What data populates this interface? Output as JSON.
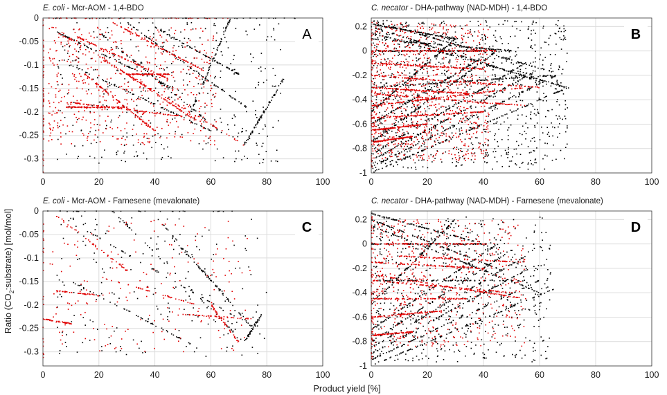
{
  "figure": {
    "xlabel": "Product yield [%]",
    "ylabel": {
      "prefix": "Ratio (CO",
      "sub": "2",
      "suffix": ":substrate) [mol/mol]"
    }
  },
  "colors": {
    "series_a": "#000000",
    "series_b": "#e00000",
    "grid": "#dcdcdc",
    "axis": "#333333"
  },
  "chart_data": [
    {
      "type": "scatter",
      "letter": "A",
      "title": {
        "italic": "E. coli",
        "rest": " - Mcr-AOM - 1,4-BDO"
      },
      "xlim": [
        0,
        100
      ],
      "ylim": [
        -0.33,
        0
      ],
      "xticks": [
        0,
        20,
        40,
        60,
        80,
        100
      ],
      "yticks": [
        0,
        -0.05,
        -0.1,
        -0.15,
        -0.2,
        -0.25,
        -0.3
      ],
      "ytick_labels": [
        "0",
        "-0.05",
        "-0.1",
        "-0.15",
        "-0.2",
        "-0.25",
        "-0.3"
      ],
      "series": [
        {
          "name": "black",
          "color": "#000000",
          "seed": 11,
          "count": 950,
          "lines": [
            [
              [
                0,
                0
              ],
              [
                90,
                0
              ]
            ],
            [
              [
                67,
                0
              ],
              [
                53,
                -0.2
              ]
            ],
            [
              [
                72,
                -0.27
              ],
              [
                86,
                -0.13
              ]
            ],
            [
              [
                5,
                -0.03
              ],
              [
                50,
                -0.16
              ]
            ],
            [
              [
                20,
                -0.03
              ],
              [
                65,
                -0.25
              ]
            ],
            [
              [
                30,
                -0.01
              ],
              [
                75,
                -0.2
              ]
            ],
            [
              [
                10,
                -0.1
              ],
              [
                60,
                -0.24
              ]
            ],
            [
              [
                40,
                -0.02
              ],
              [
                70,
                -0.12
              ]
            ]
          ],
          "cloud": [
            [
              5,
              85
            ],
            [
              -0.31,
              -0.01
            ]
          ]
        },
        {
          "name": "red",
          "color": "#e00000",
          "seed": 23,
          "count": 1400,
          "lines": [
            [
              [
                0,
                0
              ],
              [
                0,
                -0.33
              ]
            ],
            [
              [
                0,
                0
              ],
              [
                67,
                0
              ]
            ],
            [
              [
                5,
                -0.03
              ],
              [
                72,
                -0.27
              ]
            ],
            [
              [
                12,
                -0.04
              ],
              [
                45,
                -0.13
              ]
            ],
            [
              [
                20,
                -0.08
              ],
              [
                55,
                -0.22
              ]
            ],
            [
              [
                10,
                -0.18
              ],
              [
                50,
                -0.21
              ]
            ],
            [
              [
                25,
                -0.01
              ],
              [
                60,
                -0.12
              ]
            ],
            [
              [
                15,
                -0.12
              ],
              [
                40,
                -0.24
              ]
            ],
            [
              [
                30,
                -0.12
              ],
              [
                45,
                -0.12
              ]
            ],
            [
              [
                8,
                -0.19
              ],
              [
                30,
                -0.19
              ]
            ]
          ],
          "cloud": [
            [
              2,
              62
            ],
            [
              -0.27,
              -0.02
            ]
          ]
        }
      ]
    },
    {
      "type": "scatter",
      "letter": "B",
      "title": {
        "italic": "C. necator",
        "rest": " - DHA-pathway (NAD-MDH) - 1,4-BDO"
      },
      "xlim": [
        0,
        100
      ],
      "ylim": [
        -1,
        0.27
      ],
      "xticks": [
        0,
        20,
        40,
        60,
        80,
        100
      ],
      "yticks": [
        0.2,
        0,
        -0.2,
        -0.4,
        -0.6,
        -0.8,
        -1
      ],
      "ytick_labels": [
        "0.2",
        "0",
        "-0.2",
        "-0.4",
        "-0.6",
        "-0.8",
        "-1"
      ],
      "series": [
        {
          "name": "black",
          "color": "#000000",
          "seed": 37,
          "count": 2600,
          "lines": [
            [
              [
                0,
                -1
              ],
              [
                72,
                -0.28
              ]
            ],
            [
              [
                0,
                -0.95
              ],
              [
                66,
                -0.2
              ]
            ],
            [
              [
                0,
                -0.9
              ],
              [
                60,
                -0.15
              ]
            ],
            [
              [
                0,
                -0.85
              ],
              [
                55,
                -0.1
              ]
            ],
            [
              [
                0,
                -0.75
              ],
              [
                45,
                0
              ]
            ],
            [
              [
                0,
                0.25
              ],
              [
                66,
                -0.18
              ]
            ],
            [
              [
                0,
                0.2
              ],
              [
                60,
                -0.25
              ]
            ],
            [
              [
                0,
                0.15
              ],
              [
                70,
                -0.3
              ]
            ],
            [
              [
                0,
                0.1
              ],
              [
                50,
                0.0
              ]
            ],
            [
              [
                0,
                0
              ],
              [
                50,
                0
              ]
            ],
            [
              [
                0,
                -0.6
              ],
              [
                40,
                -0.05
              ]
            ],
            [
              [
                0,
                -0.5
              ],
              [
                30,
                0.1
              ]
            ],
            [
              [
                0,
                0.22
              ],
              [
                30,
                0.1
              ]
            ],
            [
              [
                0,
                -0.3
              ],
              [
                65,
                -0.2
              ]
            ]
          ],
          "cloud": [
            [
              0.5,
              70
            ],
            [
              -0.97,
              0.25
            ]
          ]
        },
        {
          "name": "red",
          "color": "#e00000",
          "seed": 53,
          "count": 2000,
          "lines": [
            [
              [
                0,
                0
              ],
              [
                45,
                0
              ]
            ],
            [
              [
                0,
                -0.1
              ],
              [
                40,
                -0.15
              ]
            ],
            [
              [
                0,
                -0.3
              ],
              [
                35,
                -0.35
              ]
            ],
            [
              [
                0,
                -0.45
              ],
              [
                55,
                -0.3
              ]
            ],
            [
              [
                0,
                -0.55
              ],
              [
                40,
                -0.5
              ]
            ],
            [
              [
                0,
                -0.65
              ],
              [
                20,
                -0.6
              ]
            ],
            [
              [
                0,
                -0.75
              ],
              [
                15,
                -0.7
              ]
            ],
            [
              [
                0,
                -0.2
              ],
              [
                60,
                -0.3
              ]
            ],
            [
              [
                0,
                -0.35
              ],
              [
                55,
                -0.45
              ]
            ],
            [
              [
                0,
                0.25
              ],
              [
                0,
                -0.95
              ]
            ]
          ],
          "cloud": [
            [
              0.5,
              42
            ],
            [
              -0.9,
              0.23
            ]
          ]
        }
      ]
    },
    {
      "type": "scatter",
      "letter": "C",
      "title": {
        "italic": "E. coli",
        "rest": " - Mcr-AOM - Farnesene (mevalonate)"
      },
      "xlim": [
        0,
        100
      ],
      "ylim": [
        -0.33,
        0
      ],
      "xticks": [
        0,
        20,
        40,
        60,
        80,
        100
      ],
      "yticks": [
        0,
        -0.05,
        -0.1,
        -0.15,
        -0.2,
        -0.25,
        -0.3
      ],
      "ytick_labels": [
        "0",
        "-0.05",
        "-0.1",
        "-0.15",
        "-0.2",
        "-0.25",
        "-0.3"
      ],
      "series": [
        {
          "name": "black",
          "color": "#000000",
          "seed": 71,
          "count": 520,
          "lines": [
            [
              [
                0,
                0
              ],
              [
                72,
                0
              ]
            ],
            [
              [
                25,
                0
              ],
              [
                72,
                -0.28
              ]
            ],
            [
              [
                15,
                -0.04
              ],
              [
                70,
                -0.23
              ]
            ],
            [
              [
                72,
                -0.28
              ],
              [
                78,
                -0.22
              ]
            ],
            [
              [
                40,
                -0.01
              ],
              [
                75,
                -0.25
              ]
            ],
            [
              [
                10,
                -0.15
              ],
              [
                55,
                -0.29
              ]
            ],
            [
              [
                45,
                -0.05
              ],
              [
                65,
                -0.18
              ]
            ]
          ],
          "cloud": [
            [
              5,
              80
            ],
            [
              -0.31,
              -0.01
            ]
          ]
        },
        {
          "name": "red",
          "color": "#e00000",
          "seed": 83,
          "count": 480,
          "lines": [
            [
              [
                0,
                0
              ],
              [
                0,
                -0.33
              ]
            ],
            [
              [
                5,
                -0.01
              ],
              [
                35,
                -0.15
              ]
            ],
            [
              [
                0,
                -0.23
              ],
              [
                10,
                -0.24
              ]
            ],
            [
              [
                5,
                -0.17
              ],
              [
                20,
                -0.18
              ]
            ],
            [
              [
                20,
                -0.14
              ],
              [
                55,
                -0.2
              ]
            ],
            [
              [
                50,
                -0.22
              ],
              [
                75,
                -0.23
              ]
            ],
            [
              [
                60,
                -0.2
              ],
              [
                70,
                -0.28
              ]
            ]
          ],
          "cloud": [
            [
              2,
              75
            ],
            [
              -0.3,
              -0.02
            ]
          ]
        }
      ]
    },
    {
      "type": "scatter",
      "letter": "D",
      "title": {
        "italic": "C. necator",
        "rest": " - DHA-pathway (NAD-MDH) - Farnesene (mevalonate)"
      },
      "xlim": [
        0,
        100
      ],
      "ylim": [
        -1,
        0.27
      ],
      "xticks": [
        0,
        20,
        40,
        60,
        80,
        100
      ],
      "yticks": [
        0.2,
        0,
        -0.2,
        -0.4,
        -0.6,
        -0.8,
        -1
      ],
      "ytick_labels": [
        "0.2",
        "0",
        "-0.2",
        "-0.4",
        "-0.6",
        "-0.8",
        "-1"
      ],
      "series": [
        {
          "name": "black",
          "color": "#000000",
          "seed": 97,
          "count": 1700,
          "lines": [
            [
              [
                0,
                -1
              ],
              [
                65,
                -0.37
              ]
            ],
            [
              [
                0,
                -0.95
              ],
              [
                60,
                -0.3
              ]
            ],
            [
              [
                0,
                -0.9
              ],
              [
                58,
                -0.18
              ]
            ],
            [
              [
                0,
                -0.85
              ],
              [
                55,
                -0.1
              ]
            ],
            [
              [
                0,
                -0.8
              ],
              [
                50,
                -0.05
              ]
            ],
            [
              [
                0,
                -0.7
              ],
              [
                45,
                0.0
              ]
            ],
            [
              [
                0,
                0
              ],
              [
                42,
                0
              ]
            ],
            [
              [
                0,
                0.25
              ],
              [
                40,
                0.0
              ]
            ],
            [
              [
                0,
                0.2
              ],
              [
                45,
                -0.2
              ]
            ],
            [
              [
                0,
                0.15
              ],
              [
                60,
                -0.4
              ]
            ],
            [
              [
                0,
                -0.5
              ],
              [
                30,
                0.2
              ]
            ],
            [
              [
                0,
                -0.3
              ],
              [
                55,
                -0.3
              ]
            ]
          ],
          "cloud": [
            [
              0.5,
              64
            ],
            [
              -0.97,
              0.22
            ]
          ]
        },
        {
          "name": "red",
          "color": "#e00000",
          "seed": 113,
          "count": 1300,
          "lines": [
            [
              [
                0,
                0
              ],
              [
                42,
                0
              ]
            ],
            [
              [
                0,
                -0.15
              ],
              [
                40,
                -0.2
              ]
            ],
            [
              [
                0,
                -0.3
              ],
              [
                50,
                -0.4
              ]
            ],
            [
              [
                0,
                -0.45
              ],
              [
                35,
                -0.45
              ]
            ],
            [
              [
                0,
                -0.6
              ],
              [
                25,
                -0.55
              ]
            ],
            [
              [
                0,
                -0.75
              ],
              [
                15,
                -0.72
              ]
            ],
            [
              [
                0,
                -0.25
              ],
              [
                55,
                -0.45
              ]
            ],
            [
              [
                0,
                0.25
              ],
              [
                0,
                -0.95
              ]
            ],
            [
              [
                10,
                -0.1
              ],
              [
                55,
                -0.15
              ]
            ]
          ],
          "cloud": [
            [
              0.5,
              55
            ],
            [
              -0.85,
              0.2
            ]
          ]
        }
      ]
    }
  ]
}
